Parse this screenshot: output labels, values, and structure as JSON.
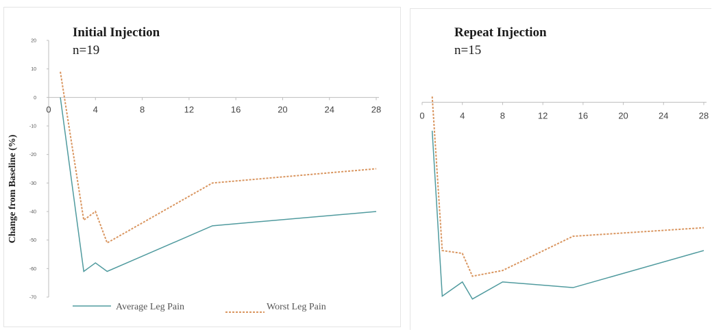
{
  "colors": {
    "average": "#4f9a9e",
    "worst": "#d9955f"
  },
  "chart_data": [
    {
      "type": "line",
      "title": "Initial Injection",
      "subtitle": "n=19",
      "xlabel": "",
      "ylabel": "Change from Baseline (%)",
      "xlim": [
        0,
        28
      ],
      "ylim": [
        -70,
        20
      ],
      "x_ticks": [
        0,
        4,
        8,
        12,
        16,
        20,
        24,
        28
      ],
      "y_ticks": [
        20,
        10,
        0,
        -10,
        -20,
        -30,
        -40,
        -50,
        -60,
        -70
      ],
      "grid": false,
      "legend": "bottom",
      "series": [
        {
          "name": "Average Leg Pain",
          "style": "solid",
          "x": [
            1,
            3,
            4,
            5,
            14,
            28
          ],
          "y": [
            0,
            -61,
            -58,
            -61,
            -45,
            -40
          ]
        },
        {
          "name": "Worst Leg Pain",
          "style": "dashed",
          "x": [
            1,
            3,
            4,
            5,
            14,
            28
          ],
          "y": [
            9,
            -43,
            -40,
            -51,
            -30,
            -25
          ]
        }
      ]
    },
    {
      "type": "line",
      "title": "Repeat Injection",
      "subtitle": "n=15",
      "xlabel": "",
      "ylabel": "",
      "xlim": [
        0,
        28
      ],
      "ylim": [
        -70,
        20
      ],
      "x_ticks": [
        0,
        4,
        8,
        12,
        16,
        20,
        24,
        28
      ],
      "y_ticks": [],
      "grid": false,
      "legend": "none",
      "series": [
        {
          "name": "Average Leg Pain",
          "style": "solid",
          "x": [
            1,
            2,
            4,
            5,
            8,
            15,
            28
          ],
          "y": [
            -10,
            -68,
            -63,
            -69,
            -63,
            -65,
            -52
          ]
        },
        {
          "name": "Worst Leg Pain",
          "style": "dashed",
          "x": [
            1,
            2,
            4,
            5,
            8,
            15,
            28
          ],
          "y": [
            2,
            -52,
            -53,
            -61,
            -59,
            -47,
            -44
          ]
        }
      ]
    }
  ]
}
